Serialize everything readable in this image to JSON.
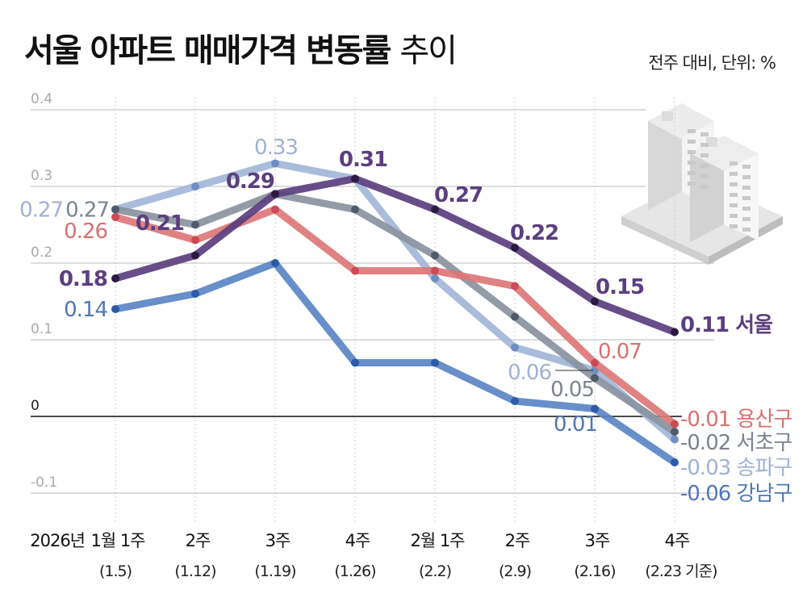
{
  "title": {
    "bold": "서울 아파트 매매가격 변동률",
    "light": "추이"
  },
  "unit_note": "전주 대비, 단위: %",
  "illustration": "apartment-buildings-icon",
  "chart_data": {
    "type": "line",
    "title": "서울 아파트 매매가격 변동률 추이",
    "subtitle": "전주 대비, 단위: %",
    "xlabel": "",
    "ylabel": "",
    "ylim": [
      -0.1,
      0.4
    ],
    "yticks": [
      0.4,
      0.3,
      0.2,
      0.1,
      0,
      -0.1
    ],
    "ytick_labels": [
      "0.4",
      "0.3",
      "0.2",
      "0.1",
      "0",
      "-0.1"
    ],
    "grid": true,
    "x_prefix": "2026년",
    "categories": [
      "1월 1주",
      "2주",
      "3주",
      "4주",
      "2월 1주",
      "2주",
      "3주",
      "4주"
    ],
    "category_dates": [
      "(1.5)",
      "(1.12)",
      "(1.19)",
      "(1.26)",
      "(2.2)",
      "(2.9)",
      "(2.16)",
      "(2.23 기준)"
    ],
    "series": [
      {
        "name": "서울",
        "color": "#5b3f7e",
        "dot": "#2b1a44",
        "values": [
          0.18,
          0.21,
          0.29,
          0.31,
          0.27,
          0.22,
          0.15,
          0.11
        ],
        "labels": [
          {
            "i": 0,
            "text": "0.18",
            "pos": "left"
          },
          {
            "i": 1,
            "text": "0.21",
            "pos": "upleft"
          },
          {
            "i": 2,
            "text": "0.29",
            "pos": "upleft"
          },
          {
            "i": 3,
            "text": "0.31",
            "pos": "up"
          },
          {
            "i": 4,
            "text": "0.27",
            "pos": "upright"
          },
          {
            "i": 5,
            "text": "0.22",
            "pos": "upright"
          },
          {
            "i": 6,
            "text": "0.15",
            "pos": "upright"
          },
          {
            "i": 7,
            "text": "0.11 서울",
            "pos": "right"
          }
        ],
        "bold": true
      },
      {
        "name": "용산구",
        "color": "#dd7777",
        "dot": "#cc4a55",
        "values": [
          0.26,
          0.23,
          0.27,
          0.19,
          0.19,
          0.17,
          0.07,
          -0.01
        ],
        "labels": [
          {
            "i": 0,
            "text": "0.26",
            "pos": "leftlow"
          },
          {
            "i": 6,
            "text": "0.07",
            "pos": "upright"
          },
          {
            "i": 7,
            "text": "-0.01 용산구",
            "pos": "right"
          }
        ]
      },
      {
        "name": "서초구",
        "color": "#8a93a0",
        "dot": "#4f5b6a",
        "values": [
          0.27,
          0.25,
          0.29,
          0.27,
          0.21,
          0.13,
          0.05,
          -0.02
        ],
        "labels": [
          {
            "i": 0,
            "text": "0.27",
            "pos": "left"
          },
          {
            "i": 6,
            "text": "0.05",
            "pos": "downleft"
          },
          {
            "i": 7,
            "text": "-0.02 서초구",
            "pos": "right"
          }
        ]
      },
      {
        "name": "송파구",
        "color": "#a3b6d8",
        "dot": "#6f8fc0",
        "values": [
          0.27,
          0.3,
          0.33,
          0.31,
          0.18,
          0.09,
          0.06,
          -0.03
        ],
        "labels": [
          {
            "i": 0,
            "text": "0.27",
            "pos": "farleft"
          },
          {
            "i": 2,
            "text": "0.33",
            "pos": "up"
          },
          {
            "i": 6,
            "text": "0.06",
            "pos": "farleft"
          },
          {
            "i": 7,
            "text": "-0.03 송파구",
            "pos": "right"
          }
        ]
      },
      {
        "name": "강남구",
        "color": "#5b85c6",
        "dot": "#2d5ba8",
        "values": [
          0.14,
          0.16,
          0.2,
          0.07,
          0.07,
          0.02,
          0.01,
          -0.06
        ],
        "labels": [
          {
            "i": 0,
            "text": "0.14",
            "pos": "left"
          },
          {
            "i": 6,
            "text": "0.01",
            "pos": "down"
          },
          {
            "i": 7,
            "text": "-0.06 강남구",
            "pos": "right"
          }
        ]
      }
    ]
  }
}
